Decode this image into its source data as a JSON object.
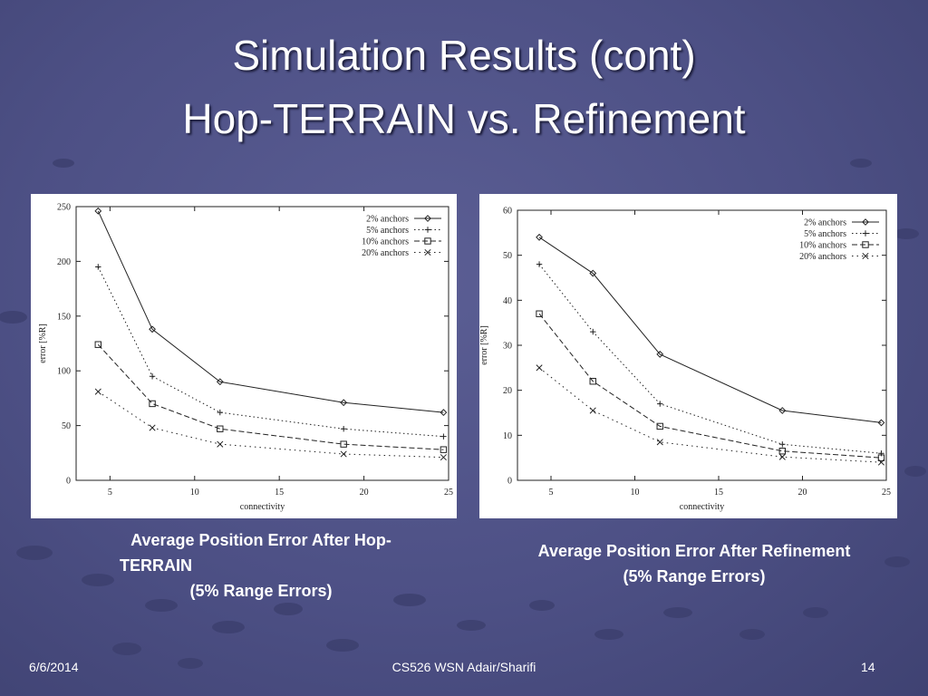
{
  "slide": {
    "title_line1": "Simulation Results (cont)",
    "title_line2": "Hop-TERRAIN vs. Refinement",
    "caption_left_line1": "Average Position Error After Hop-",
    "caption_left_line2": "TERRAIN",
    "caption_left_line3": "(5% Range Errors)",
    "caption_right_line1": "Average Position Error After Refinement",
    "caption_right_line2": "(5% Range Errors)",
    "footer_date": "6/6/2014",
    "footer_center": "CS526 WSN Adair/Sharifi",
    "footer_page": "14",
    "background_color": "#4f5288"
  },
  "chart_data": [
    {
      "type": "line",
      "xlabel": "connectivity",
      "ylabel": "error [%R]",
      "xlim": [
        3,
        25
      ],
      "ylim": [
        0,
        250
      ],
      "x_ticks": [
        5,
        10,
        15,
        20,
        25
      ],
      "y_ticks": [
        0,
        50,
        100,
        150,
        200,
        250
      ],
      "legend_position": "top-right",
      "x": [
        4.3,
        7.5,
        11.5,
        18.8,
        24.7
      ],
      "series": [
        {
          "name": "2% anchors",
          "values": [
            246,
            138,
            90,
            71,
            62
          ],
          "style": "solid",
          "marker": "diamond"
        },
        {
          "name": "5% anchors",
          "values": [
            195,
            95,
            62,
            47,
            40
          ],
          "style": "dotted",
          "marker": "plus"
        },
        {
          "name": "10% anchors",
          "values": [
            124,
            70,
            47,
            33,
            28
          ],
          "style": "dashed",
          "marker": "square"
        },
        {
          "name": "20% anchors",
          "values": [
            81,
            48,
            33,
            24,
            21
          ],
          "style": "dashdot",
          "marker": "x"
        }
      ]
    },
    {
      "type": "line",
      "xlabel": "connectivity",
      "ylabel": "error [%R]",
      "xlim": [
        3,
        25
      ],
      "ylim": [
        0,
        60
      ],
      "x_ticks": [
        5,
        10,
        15,
        20,
        25
      ],
      "y_ticks": [
        0,
        10,
        20,
        30,
        40,
        50,
        60
      ],
      "legend_position": "top-right",
      "x": [
        4.3,
        7.5,
        11.5,
        18.8,
        24.7
      ],
      "series": [
        {
          "name": "2% anchors",
          "values": [
            54,
            46,
            28,
            15.5,
            12.8
          ],
          "style": "solid",
          "marker": "diamond"
        },
        {
          "name": "5% anchors",
          "values": [
            48,
            33,
            17,
            8,
            6
          ],
          "style": "dotted",
          "marker": "plus"
        },
        {
          "name": "10% anchors",
          "values": [
            37,
            22,
            12,
            6.5,
            5
          ],
          "style": "dashed",
          "marker": "square"
        },
        {
          "name": "20% anchors",
          "values": [
            25,
            15.5,
            8.5,
            5.2,
            4
          ],
          "style": "dashdot",
          "marker": "x"
        }
      ]
    }
  ]
}
